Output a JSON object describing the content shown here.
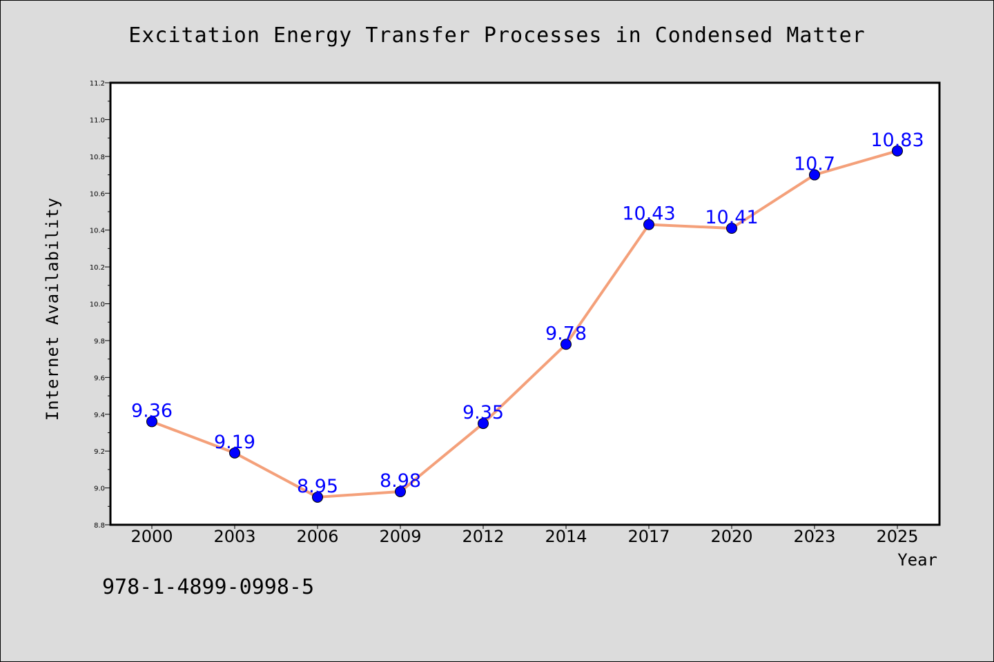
{
  "chart_data": {
    "type": "line",
    "title": "Excitation Energy Transfer Processes in Condensed Matter",
    "xlabel": "Year",
    "ylabel": "Internet Availability",
    "categories": [
      "2000",
      "2003",
      "2006",
      "2009",
      "2012",
      "2014",
      "2017",
      "2020",
      "2023",
      "2025"
    ],
    "series": [
      {
        "values": [
          9.36,
          9.19,
          8.95,
          8.98,
          9.35,
          9.78,
          10.43,
          10.41,
          10.7,
          10.83
        ],
        "labels": [
          "9.36",
          "9.19",
          "8.95",
          "8.98",
          "9.35",
          "9.78",
          "10.43",
          "10.41",
          "10.7",
          "10.83"
        ],
        "line_color": "#f4a07a",
        "marker_color": "#0000ff",
        "label_color": "#0000ff"
      }
    ],
    "ylim": [
      8.8,
      11.2
    ],
    "yticks": [
      "8.8",
      "9.0",
      "9.2",
      "9.4",
      "9.6",
      "9.8",
      "10.0",
      "10.2",
      "10.4",
      "10.6",
      "10.8",
      "11.0",
      "11.2"
    ],
    "grid": false,
    "legend": "none",
    "background": "#dcdcdc",
    "plot_background": "#ffffff"
  },
  "footer": {
    "code": "978-1-4899-0998-5"
  }
}
